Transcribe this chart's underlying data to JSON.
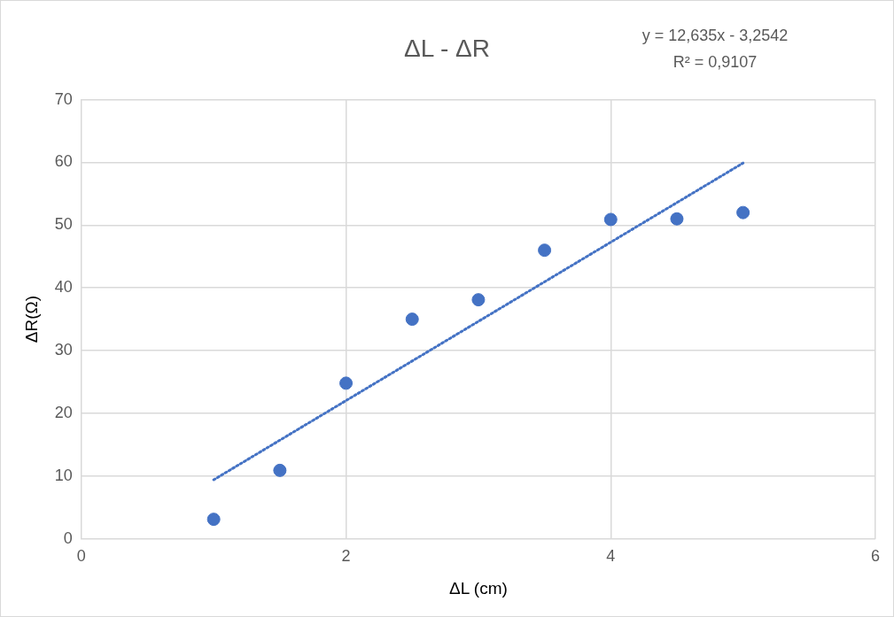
{
  "chart_data": {
    "type": "scatter",
    "title": "ΔL - ΔR",
    "xlabel": "ΔL (cm)",
    "ylabel": "ΔR(Ω)",
    "annotations": [
      "y = 12,635x - 3,2542",
      "R² = 0,9107"
    ],
    "xlim": [
      0,
      6
    ],
    "xticks": [
      0,
      2,
      4,
      6
    ],
    "ylim": [
      0,
      70
    ],
    "yticks": [
      0,
      10,
      20,
      30,
      40,
      50,
      60,
      70
    ],
    "grid": true,
    "legend": false,
    "marker": "circle",
    "series": [
      {
        "type": "scatter",
        "color": "#4472c4",
        "x": [
          1,
          1.5,
          2,
          2.5,
          3,
          3.5,
          4,
          4.5,
          5
        ],
        "values": [
          3.1,
          10.9,
          24.8,
          35,
          38.1,
          46,
          50.9,
          51,
          52
        ]
      },
      {
        "type": "line",
        "color": "#4472c4",
        "line_style": "dotted",
        "marker": "none",
        "x": [
          1,
          5
        ],
        "values": [
          9.4,
          59.9
        ]
      }
    ]
  }
}
